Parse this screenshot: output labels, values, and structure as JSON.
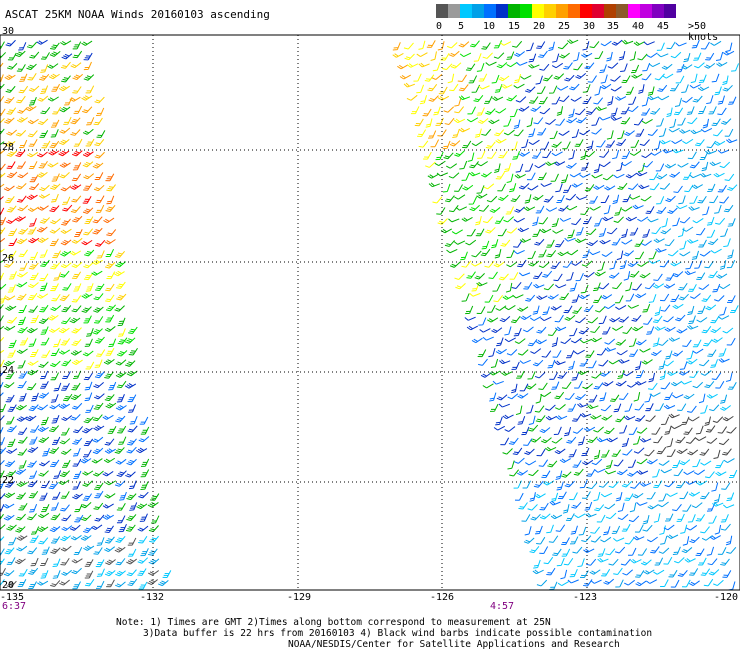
{
  "title": "ASCAT 25KM NOAA Winds 20160103 ascending",
  "legend": {
    "labels": [
      "0",
      "5",
      "10",
      "15",
      "20",
      "25",
      "30",
      "35",
      "40",
      "45",
      ">50 knots"
    ],
    "colors": [
      "#555555",
      "#9a9a9a",
      "#00c8ff",
      "#00a0e8",
      "#0070ff",
      "#0030c8",
      "#00b400",
      "#00e000",
      "#ffff00",
      "#ffd000",
      "#ffa000",
      "#ff6a00",
      "#ff0000",
      "#e00030",
      "#b04000",
      "#8c5a2a",
      "#ff00ff",
      "#c000e0",
      "#8000c0",
      "#5000a0"
    ]
  },
  "axes": {
    "lon_labels": [
      "-135",
      "-132",
      "-129",
      "-126",
      "-123",
      "-120"
    ],
    "lat_labels": [
      "30",
      "28",
      "26",
      "24",
      "22",
      "20"
    ]
  },
  "time_labels": [
    "6:37",
    "4:57"
  ],
  "notes": [
    "Note: 1) Times are GMT 2)Times along bottom correspond to measurement at 25N",
    "3)Data buffer is 22 hrs from 20160103 4) Black wind barbs indicate possible contamination",
    "NOAA/NESDIS/Center for Satellite Applications and Research"
  ]
}
